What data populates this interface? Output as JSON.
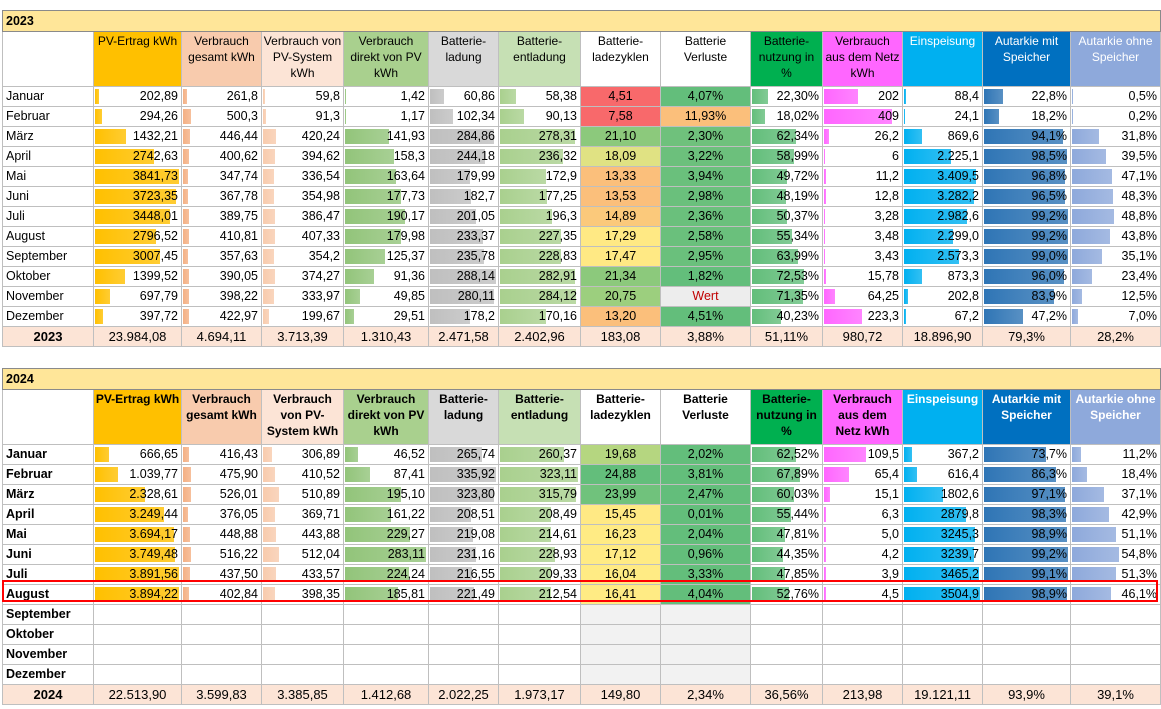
{
  "colors": {
    "pv": "#ffc000",
    "vg": "#f4b084",
    "vpv": "#f8cbad",
    "vd": "#92c47a",
    "bl": "#bfbfbf",
    "be": "#a9d08e",
    "bn": "#63be7b",
    "vn": "#ff66ff",
    "ei": "#00b0f0",
    "am": "#2f75b5",
    "ao": "#8ea9db"
  },
  "headers": [
    "",
    "PV-Ertrag kWh",
    "Verbrauch gesamt  kWh",
    "Verbrauch von PV-System kWh",
    "Verbrauch direkt von PV kWh",
    "Batterie-ladung",
    "Batterie-entladung",
    "Batterie-ladezyklen",
    "Batterie Verluste",
    "Batterie-nutzung in %",
    "Verbrauch aus dem Netz kWh",
    "Einspeisung",
    "Autarkie mit Speicher",
    "Autarkie ohne Speicher"
  ],
  "headers2024": [
    "",
    "PV-Ertrag kWh",
    "Verbrauch gesamt  kWh",
    "Verbrauch von PV-System kWh",
    "Verbrauch direkt von PV kWh",
    "Batterie-ladung",
    "Batterie-entladung",
    "Batterie-ladezyklen",
    "Batterie Verluste",
    "Batterie-nutzung in %",
    "Verbrauch aus dem Netz kWh",
    "Einspeisung",
    "Autarkie mit Speicher",
    "Autarkie ohne Speicher"
  ],
  "table2023": {
    "title": "2023",
    "rows": [
      {
        "m": "Januar",
        "v": [
          "202,89",
          "261,8",
          "59,8",
          "1,42",
          "60,86",
          "58,38",
          "4,51",
          "4,07%",
          "22,30%",
          "202",
          "88,4",
          "22,8%",
          "0,5%"
        ],
        "f": [
          0.05,
          0.05,
          0.02,
          0.01,
          0.21,
          0.2,
          0.2,
          1,
          0.23,
          0.45,
          0.02,
          0.23,
          0.01
        ],
        "zc": "#f8696b",
        "vc": "#63be7b"
      },
      {
        "m": "Februar",
        "v": [
          "294,26",
          "500,3",
          "91,3",
          "1,17",
          "102,34",
          "90,13",
          "7,58",
          "11,93%",
          "18,02%",
          "409",
          "24,1",
          "18,2%",
          "0,2%"
        ],
        "f": [
          0.08,
          0.1,
          0.04,
          0.01,
          0.35,
          0.31,
          0.2,
          1,
          0.19,
          0.9,
          0.01,
          0.18,
          0.01
        ],
        "zc": "#f8696b",
        "vc": "#fbbf7b"
      },
      {
        "m": "März",
        "v": [
          "1432,21",
          "446,44",
          "420,24",
          "141,93",
          "284,86",
          "278,31",
          "21,10",
          "2,30%",
          "62,34%",
          "26,2",
          "869,6",
          "94,1%",
          "31,8%"
        ],
        "f": [
          0.37,
          0.09,
          0.17,
          0.55,
          0.97,
          0.96,
          0.2,
          1,
          0.65,
          0.06,
          0.24,
          0.94,
          0.32
        ],
        "zc": "#8cc97c",
        "vc": "#6fc17c"
      },
      {
        "m": "April",
        "v": [
          "2742,63",
          "400,62",
          "394,62",
          "158,3",
          "244,18",
          "236,32",
          "18,09",
          "3,22%",
          "58,99%",
          "6",
          "2.225,1",
          "98,5%",
          "39,5%"
        ],
        "f": [
          0.71,
          0.08,
          0.16,
          0.61,
          0.83,
          0.81,
          0.2,
          1,
          0.61,
          0.01,
          0.62,
          0.99,
          0.4
        ],
        "zc": "#e0e283",
        "vc": "#6cc07c"
      },
      {
        "m": "Mai",
        "v": [
          "3841,73",
          "347,74",
          "336,54",
          "163,64",
          "179,99",
          "172,9",
          "13,33",
          "3,94%",
          "49,72%",
          "11,2",
          "3.409,5",
          "96,8%",
          "47,1%"
        ],
        "f": [
          1.0,
          0.07,
          0.14,
          0.63,
          0.61,
          0.59,
          0.2,
          1,
          0.52,
          0.02,
          0.95,
          0.97,
          0.47
        ],
        "zc": "#fbbf7b",
        "vc": "#6ac07c"
      },
      {
        "m": "Juni",
        "v": [
          "3723,35",
          "367,78",
          "354,98",
          "177,73",
          "182,7",
          "177,25",
          "13,53",
          "2,98%",
          "48,19%",
          "12,8",
          "3.282,2",
          "96,5%",
          "48,3%"
        ],
        "f": [
          0.97,
          0.07,
          0.14,
          0.69,
          0.62,
          0.61,
          0.2,
          1,
          0.5,
          0.02,
          0.92,
          0.97,
          0.48
        ],
        "zc": "#fbbf7b",
        "vc": "#6ac07c"
      },
      {
        "m": "Juli",
        "v": [
          "3448,01",
          "389,75",
          "386,47",
          "190,17",
          "201,05",
          "196,3",
          "14,89",
          "2,36%",
          "50,37%",
          "3,28",
          "2.982,6",
          "99,2%",
          "48,8%"
        ],
        "f": [
          0.9,
          0.08,
          0.16,
          0.74,
          0.69,
          0.67,
          0.2,
          1,
          0.52,
          0.01,
          0.83,
          1.0,
          0.49
        ],
        "zc": "#fbc97b",
        "vc": "#6ac07c"
      },
      {
        "m": "August",
        "v": [
          "2796,52",
          "410,81",
          "407,33",
          "179,98",
          "233,37",
          "227,35",
          "17,29",
          "2,58%",
          "55,34%",
          "3,48",
          "2.299,0",
          "99,2%",
          "43,8%"
        ],
        "f": [
          0.73,
          0.08,
          0.16,
          0.7,
          0.8,
          0.78,
          0.2,
          1,
          0.58,
          0.01,
          0.64,
          1.0,
          0.44
        ],
        "zc": "#ffe984",
        "vc": "#6ac07c"
      },
      {
        "m": "September",
        "v": [
          "3007,45",
          "357,63",
          "354,2",
          "125,37",
          "235,78",
          "228,83",
          "17,47",
          "2,95%",
          "63,99%",
          "3,43",
          "2.573,3",
          "99,0%",
          "35,1%"
        ],
        "f": [
          0.78,
          0.07,
          0.14,
          0.49,
          0.81,
          0.79,
          0.2,
          1,
          0.67,
          0.01,
          0.72,
          1.0,
          0.35
        ],
        "zc": "#ffe984",
        "vc": "#6ac07c"
      },
      {
        "m": "Oktober",
        "v": [
          "1399,52",
          "390,05",
          "374,27",
          "91,36",
          "288,14",
          "282,91",
          "21,34",
          "1,82%",
          "72,53%",
          "15,78",
          "873,3",
          "96,0%",
          "23,4%"
        ],
        "f": [
          0.36,
          0.08,
          0.15,
          0.36,
          0.99,
          0.97,
          0.2,
          1,
          0.76,
          0.03,
          0.24,
          0.96,
          0.23
        ],
        "zc": "#8cc97c",
        "vc": "#63be7b"
      },
      {
        "m": "November",
        "v": [
          "697,79",
          "398,22",
          "333,97",
          "49,85",
          "280,11",
          "284,12",
          "20,75",
          "Wert",
          "71,35%",
          "64,25",
          "202,8",
          "83,9%",
          "12,5%"
        ],
        "f": [
          0.18,
          0.08,
          0.14,
          0.19,
          0.97,
          0.98,
          0.2,
          0,
          0.75,
          0.14,
          0.05,
          0.84,
          0.12
        ],
        "zc": "#9ccf7e",
        "vc": "#ededed"
      },
      {
        "m": "Dezember",
        "v": [
          "397,72",
          "422,97",
          "199,67",
          "29,51",
          "178,2",
          "170,16",
          "13,20",
          "4,51%",
          "40,23%",
          "223,3",
          "67,2",
          "47,2%",
          "7,0%"
        ],
        "f": [
          0.1,
          0.08,
          0.08,
          0.11,
          0.61,
          0.59,
          0.2,
          1,
          0.42,
          0.5,
          0.02,
          0.47,
          0.07
        ],
        "zc": "#fbbf7b",
        "vc": "#63be7b"
      }
    ],
    "sum": [
      "2023",
      "23.984,08",
      "4.694,11",
      "3.713,39",
      "1.310,43",
      "2.471,58",
      "2.402,96",
      "183,08",
      "3,88%",
      "51,11%",
      "980,72",
      "18.896,90",
      "79,3%",
      "28,2%"
    ]
  },
  "table2024": {
    "title": "2024",
    "rows": [
      {
        "m": "Januar",
        "v": [
          "666,65",
          "416,43",
          "306,89",
          "46,52",
          "265,74",
          "260,37",
          "19,68",
          "2,02%",
          "62,52%",
          "109,5",
          "367,2",
          "73,7%",
          "11,2%"
        ],
        "f": [
          0.17,
          0.08,
          0.12,
          0.16,
          0.79,
          0.82,
          0.2,
          1,
          0.64,
          0.55,
          0.1,
          0.74,
          0.11
        ],
        "zc": "#b5d680",
        "vc": "#63be7b"
      },
      {
        "m": "Februar",
        "v": [
          "1.039,77",
          "475,90",
          "410,52",
          "87,41",
          "335,92",
          "323,11",
          "24,88",
          "3,81%",
          "67,89%",
          "65,4",
          "616,4",
          "86,3%",
          "18,4%"
        ],
        "f": [
          0.27,
          0.1,
          0.16,
          0.31,
          1.0,
          1.0,
          0.2,
          1,
          0.7,
          0.33,
          0.17,
          0.86,
          0.18
        ],
        "zc": "#63be7b",
        "vc": "#63be7b"
      },
      {
        "m": "März",
        "v": [
          "2.328,61",
          "526,01",
          "510,89",
          "195,10",
          "323,80",
          "315,79",
          "23,99",
          "2,47%",
          "60,03%",
          "15,1",
          "1802,6",
          "97,1%",
          "37,1%"
        ],
        "f": [
          0.6,
          0.11,
          0.2,
          0.69,
          0.96,
          0.98,
          0.2,
          1,
          0.62,
          0.08,
          0.51,
          0.97,
          0.37
        ],
        "zc": "#70c27c",
        "vc": "#63be7b"
      },
      {
        "m": "April",
        "v": [
          "3.249,44",
          "376,05",
          "369,71",
          "161,22",
          "208,51",
          "208,49",
          "15,45",
          "0,01%",
          "55,44%",
          "6,3",
          "2879,8",
          "98,3%",
          "42,9%"
        ],
        "f": [
          0.83,
          0.07,
          0.15,
          0.57,
          0.62,
          0.65,
          0.2,
          1,
          0.57,
          0.03,
          0.82,
          0.98,
          0.43
        ],
        "zc": "#ffe984",
        "vc": "#63be7b"
      },
      {
        "m": "Mai",
        "v": [
          "3.694,17",
          "448,88",
          "443,88",
          "229,27",
          "219,08",
          "214,61",
          "16,23",
          "2,04%",
          "47,81%",
          "5,0",
          "3245,3",
          "98,9%",
          "51,1%"
        ],
        "f": [
          0.95,
          0.09,
          0.17,
          0.81,
          0.65,
          0.66,
          0.2,
          1,
          0.49,
          0.02,
          0.93,
          0.99,
          0.51
        ],
        "zc": "#ffeb84",
        "vc": "#63be7b"
      },
      {
        "m": "Juni",
        "v": [
          "3.749,48",
          "516,22",
          "512,04",
          "283,11",
          "231,16",
          "228,93",
          "17,12",
          "0,96%",
          "44,35%",
          "4,2",
          "3239,7",
          "99,2%",
          "54,8%"
        ],
        "f": [
          0.96,
          0.1,
          0.2,
          1.0,
          0.69,
          0.71,
          0.2,
          1,
          0.46,
          0.02,
          0.92,
          1.0,
          0.55
        ],
        "zc": "#ffeb84",
        "vc": "#63be7b"
      },
      {
        "m": "Juli",
        "v": [
          "3.891,56",
          "437,50",
          "433,57",
          "224,24",
          "216,55",
          "209,33",
          "16,04",
          "3,33%",
          "47,85%",
          "3,9",
          "3465,2",
          "99,1%",
          "51,3%"
        ],
        "f": [
          1.0,
          0.09,
          0.17,
          0.79,
          0.64,
          0.65,
          0.2,
          1,
          0.49,
          0.02,
          0.99,
          1.0,
          0.51
        ],
        "zc": "#ffeb84",
        "vc": "#63be7b"
      },
      {
        "m": "August",
        "v": [
          "3.894,22",
          "402,84",
          "398,35",
          "185,81",
          "221,49",
          "212,54",
          "16,41",
          "4,04%",
          "52,76%",
          "4,5",
          "3504,9",
          "98,9%",
          "46,1%"
        ],
        "f": [
          1.0,
          0.08,
          0.16,
          0.66,
          0.66,
          0.66,
          0.2,
          1,
          0.54,
          0.02,
          1.0,
          0.99,
          0.46
        ],
        "zc": "#ffeb84",
        "vc": "#63be7b"
      },
      {
        "m": "September",
        "v": [
          "",
          "",
          "",
          "",
          "",
          "",
          "",
          "",
          "",
          "",
          "",
          "",
          ""
        ],
        "f": [],
        "zc": "#f2f2f2",
        "vc": "#f2f2f2"
      },
      {
        "m": "Oktober",
        "v": [
          "",
          "",
          "",
          "",
          "",
          "",
          "",
          "",
          "",
          "",
          "",
          "",
          ""
        ],
        "f": [],
        "zc": "#f2f2f2",
        "vc": "#f2f2f2"
      },
      {
        "m": "November",
        "v": [
          "",
          "",
          "",
          "",
          "",
          "",
          "",
          "",
          "",
          "",
          "",
          "",
          ""
        ],
        "f": [],
        "zc": "#f2f2f2",
        "vc": "#f2f2f2"
      },
      {
        "m": "Dezember",
        "v": [
          "",
          "",
          "",
          "",
          "",
          "",
          "",
          "",
          "",
          "",
          "",
          "",
          ""
        ],
        "f": [],
        "zc": "#f2f2f2",
        "vc": "#f2f2f2"
      }
    ],
    "sum": [
      "2024",
      "22.513,90",
      "3.599,83",
      "3.385,85",
      "1.412,68",
      "2.022,25",
      "1.973,17",
      "149,80",
      "2,34%",
      "36,56%",
      "213,98",
      "19.121,11",
      "93,9%",
      "39,1%"
    ]
  }
}
